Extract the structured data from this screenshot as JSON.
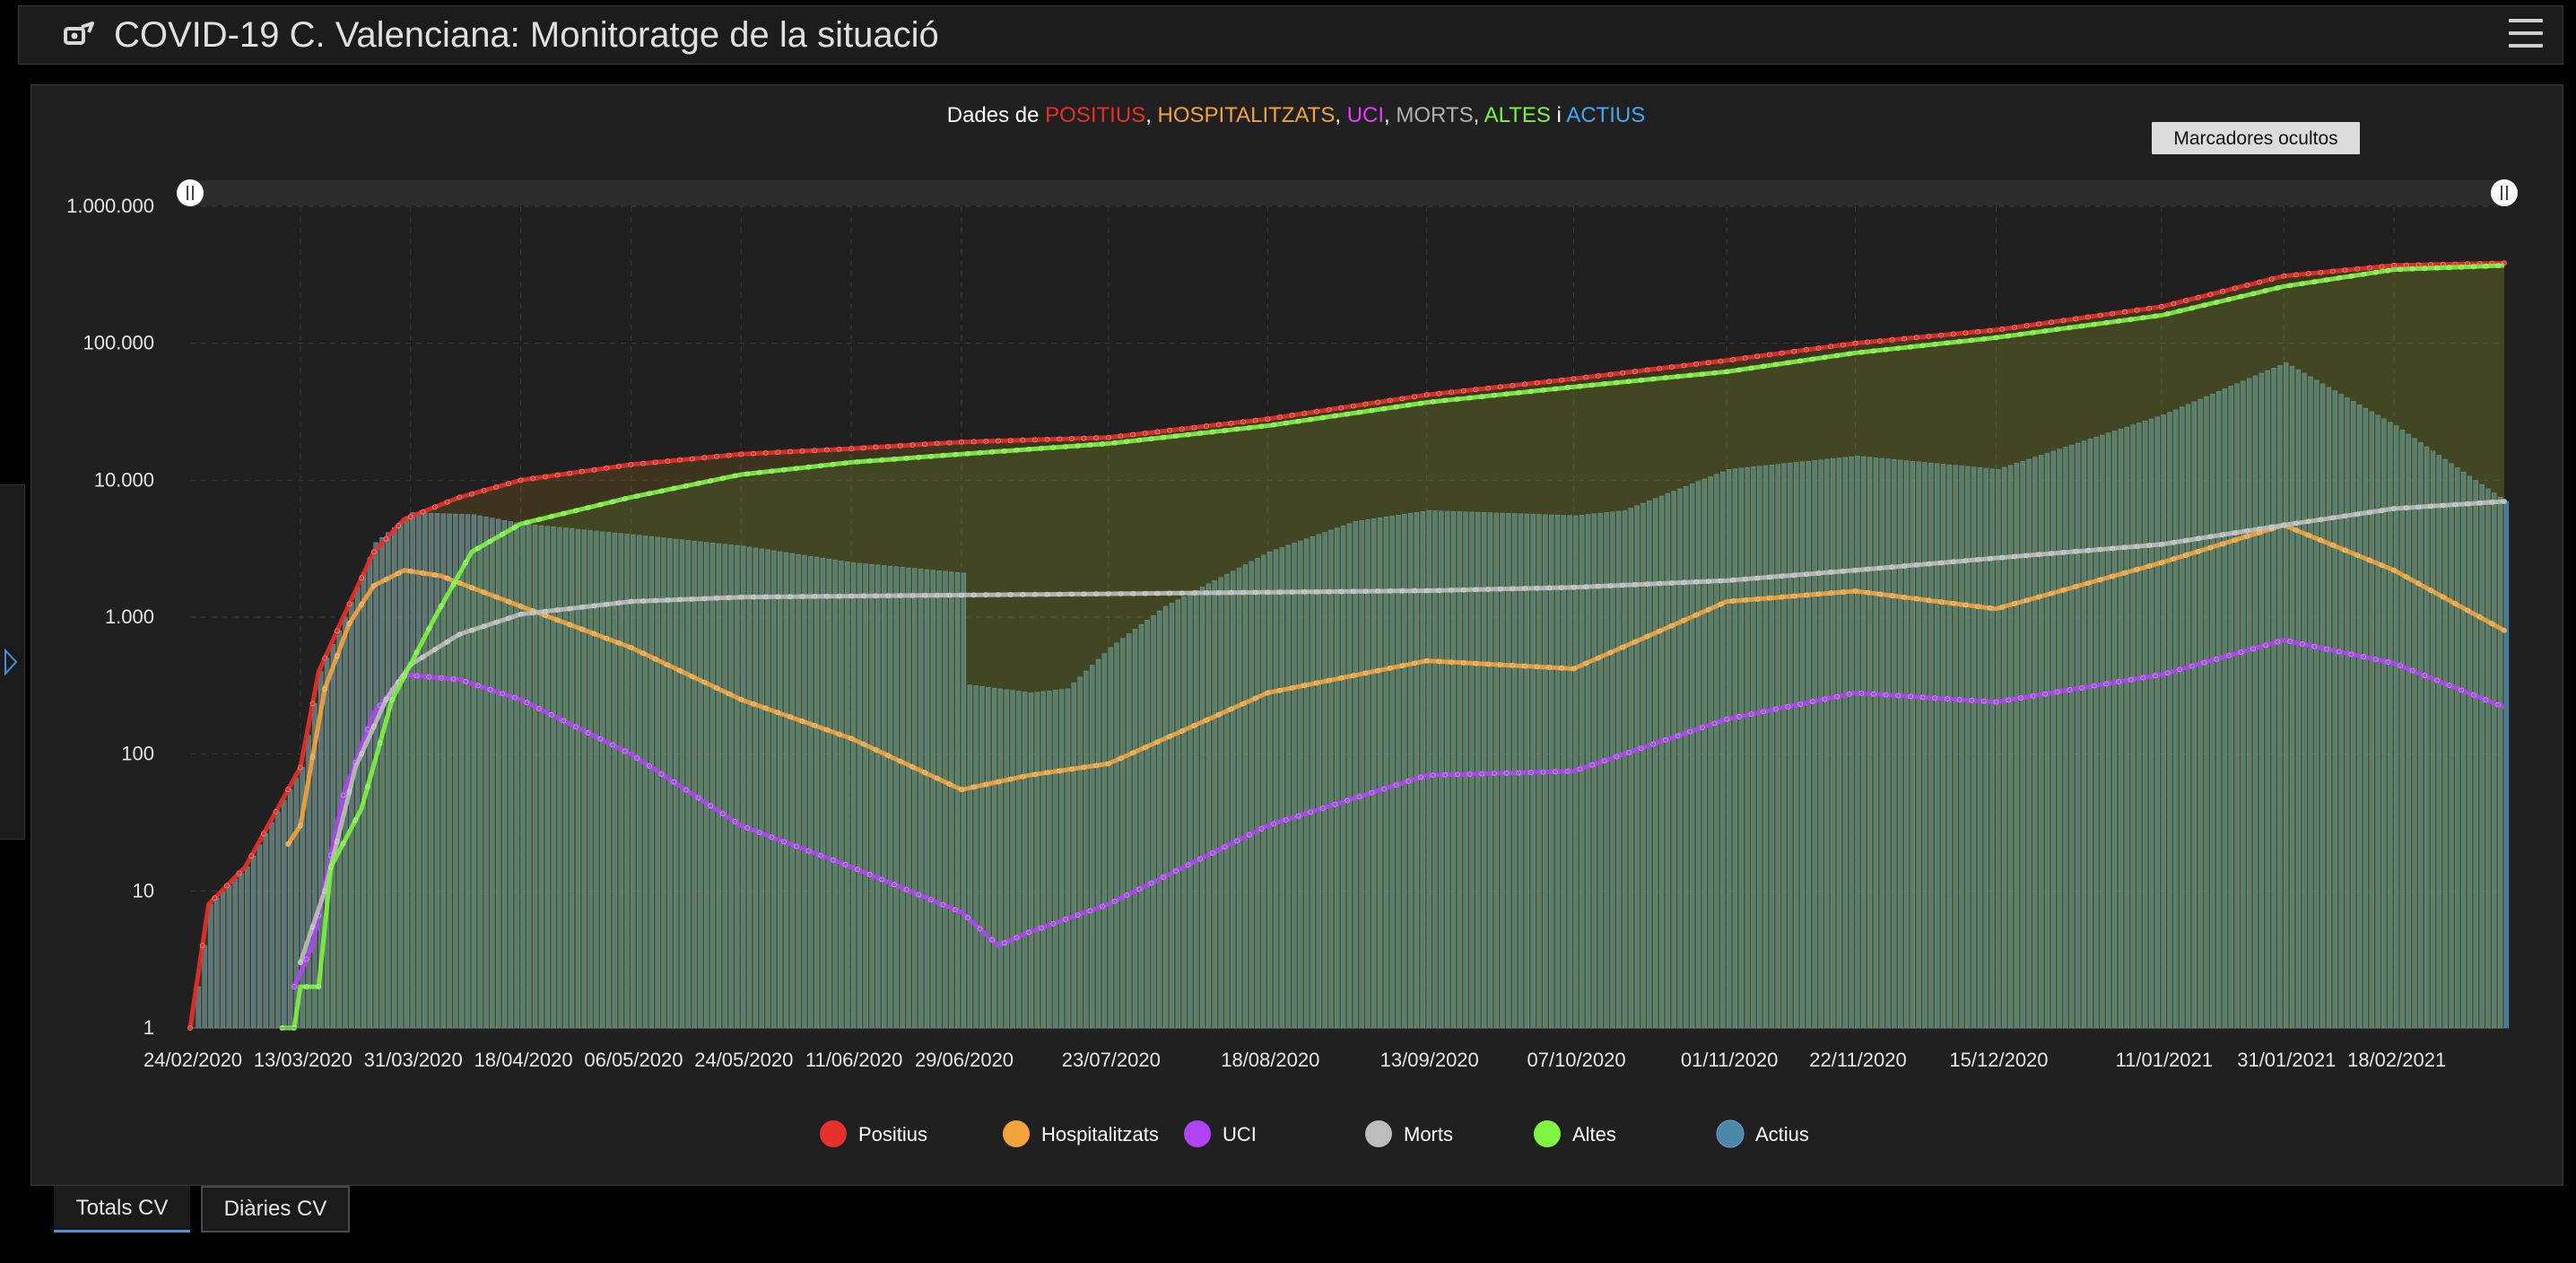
{
  "app": {
    "title": "COVID-19 C. Valenciana: Monitoratge de la situació",
    "icon": "dashboard-logo-icon",
    "menu_icon": "hamburger-menu-icon"
  },
  "chart": {
    "title_parts": [
      {
        "text": "Dades de ",
        "color": "#ffffff"
      },
      {
        "text": "POSITIUS",
        "color": "#e8302a"
      },
      {
        "text": ", ",
        "color": "#ffffff"
      },
      {
        "text": "HOSPITALITZATS",
        "color": "#f2a33c"
      },
      {
        "text": ", ",
        "color": "#ffffff"
      },
      {
        "text": "UCI",
        "color": "#e040fb"
      },
      {
        "text": ", ",
        "color": "#ffffff"
      },
      {
        "text": "MORTS",
        "color": "#b0b0b0"
      },
      {
        "text": ", ",
        "color": "#ffffff"
      },
      {
        "text": "ALTES",
        "color": "#7cf441"
      },
      {
        "text": " i ",
        "color": "#ffffff"
      },
      {
        "text": "ACTIUS",
        "color": "#3fa9f5"
      }
    ],
    "markers_button": "Marcadores ocultos"
  },
  "tabs": [
    {
      "label": "Totals CV",
      "active": true
    },
    {
      "label": "Diàries CV",
      "active": false
    }
  ],
  "chart_data": {
    "type": "line",
    "scale": "log",
    "ylim": [
      1,
      1000000
    ],
    "y_ticks": [
      1,
      10,
      100,
      1000,
      10000,
      100000,
      1000000
    ],
    "y_tick_labels": [
      "1",
      "10",
      "100",
      "1.000",
      "10.000",
      "100.000",
      "1.000.000"
    ],
    "x_start": "2020-02-24",
    "x_end": "2021-03-08",
    "x_tick_labels": [
      "24/02/2020",
      "13/03/2020",
      "31/03/2020",
      "18/04/2020",
      "06/05/2020",
      "24/05/2020",
      "11/06/2020",
      "29/06/2020",
      "23/07/2020",
      "18/08/2020",
      "13/09/2020",
      "07/10/2020",
      "01/11/2020",
      "22/11/2020",
      "15/12/2020",
      "11/01/2021",
      "31/01/2021",
      "18/02/2021"
    ],
    "grid": true,
    "legend_position": "bottom",
    "series": [
      {
        "name": "Positius",
        "color": "#e8302a",
        "style": "line-area",
        "points": [
          [
            "2020-02-24",
            1
          ],
          [
            "2020-02-27",
            8
          ],
          [
            "2020-03-04",
            15
          ],
          [
            "2020-03-13",
            80
          ],
          [
            "2020-03-16",
            400
          ],
          [
            "2020-03-20",
            1000
          ],
          [
            "2020-03-25",
            3000
          ],
          [
            "2020-03-30",
            5200
          ],
          [
            "2020-04-08",
            7500
          ],
          [
            "2020-04-18",
            10000
          ],
          [
            "2020-05-06",
            13000
          ],
          [
            "2020-05-24",
            15500
          ],
          [
            "2020-06-11",
            17000
          ],
          [
            "2020-06-29",
            19000
          ],
          [
            "2020-07-23",
            20500
          ],
          [
            "2020-08-18",
            28000
          ],
          [
            "2020-09-13",
            42000
          ],
          [
            "2020-10-07",
            55000
          ],
          [
            "2020-11-01",
            75000
          ],
          [
            "2020-11-22",
            100000
          ],
          [
            "2020-12-15",
            125000
          ],
          [
            "2021-01-11",
            185000
          ],
          [
            "2021-01-31",
            310000
          ],
          [
            "2021-02-18",
            370000
          ],
          [
            "2021-03-08",
            385000
          ]
        ]
      },
      {
        "name": "Hospitalitzats",
        "color": "#f2a33c",
        "style": "line",
        "points": [
          [
            "2020-03-11",
            22
          ],
          [
            "2020-03-13",
            30
          ],
          [
            "2020-03-17",
            300
          ],
          [
            "2020-03-21",
            900
          ],
          [
            "2020-03-25",
            1700
          ],
          [
            "2020-03-30",
            2200
          ],
          [
            "2020-04-05",
            2000
          ],
          [
            "2020-04-18",
            1200
          ],
          [
            "2020-05-06",
            600
          ],
          [
            "2020-05-24",
            250
          ],
          [
            "2020-06-11",
            130
          ],
          [
            "2020-06-29",
            55
          ],
          [
            "2020-07-10",
            70
          ],
          [
            "2020-07-23",
            85
          ],
          [
            "2020-08-18",
            280
          ],
          [
            "2020-09-13",
            480
          ],
          [
            "2020-10-07",
            420
          ],
          [
            "2020-11-01",
            1300
          ],
          [
            "2020-11-22",
            1550
          ],
          [
            "2020-12-15",
            1150
          ],
          [
            "2021-01-11",
            2500
          ],
          [
            "2021-01-31",
            4700
          ],
          [
            "2021-02-18",
            2200
          ],
          [
            "2021-03-08",
            800
          ]
        ]
      },
      {
        "name": "UCI",
        "color": "#b044f5",
        "style": "line",
        "points": [
          [
            "2020-03-12",
            2
          ],
          [
            "2020-03-15",
            4
          ],
          [
            "2020-03-20",
            50
          ],
          [
            "2020-03-25",
            200
          ],
          [
            "2020-03-30",
            380
          ],
          [
            "2020-04-08",
            350
          ],
          [
            "2020-04-18",
            250
          ],
          [
            "2020-05-06",
            100
          ],
          [
            "2020-05-24",
            30
          ],
          [
            "2020-06-11",
            15
          ],
          [
            "2020-06-29",
            7
          ],
          [
            "2020-07-05",
            4
          ],
          [
            "2020-07-10",
            5
          ],
          [
            "2020-07-23",
            8
          ],
          [
            "2020-08-18",
            30
          ],
          [
            "2020-09-13",
            70
          ],
          [
            "2020-10-07",
            75
          ],
          [
            "2020-11-01",
            180
          ],
          [
            "2020-11-22",
            280
          ],
          [
            "2020-12-15",
            240
          ],
          [
            "2021-01-11",
            380
          ],
          [
            "2021-01-31",
            680
          ],
          [
            "2021-02-18",
            460
          ],
          [
            "2021-03-08",
            220
          ]
        ]
      },
      {
        "name": "Morts",
        "color": "#bdbdbd",
        "style": "line",
        "points": [
          [
            "2020-03-13",
            3
          ],
          [
            "2020-03-17",
            10
          ],
          [
            "2020-03-22",
            80
          ],
          [
            "2020-03-27",
            250
          ],
          [
            "2020-03-31",
            450
          ],
          [
            "2020-04-08",
            750
          ],
          [
            "2020-04-18",
            1050
          ],
          [
            "2020-05-06",
            1300
          ],
          [
            "2020-05-24",
            1400
          ],
          [
            "2020-06-29",
            1450
          ],
          [
            "2020-07-23",
            1480
          ],
          [
            "2020-08-18",
            1520
          ],
          [
            "2020-09-13",
            1560
          ],
          [
            "2020-10-07",
            1650
          ],
          [
            "2020-11-01",
            1850
          ],
          [
            "2020-11-22",
            2200
          ],
          [
            "2020-12-15",
            2700
          ],
          [
            "2021-01-11",
            3400
          ],
          [
            "2021-01-31",
            4700
          ],
          [
            "2021-02-18",
            6200
          ],
          [
            "2021-03-08",
            7000
          ]
        ]
      },
      {
        "name": "Altes",
        "color": "#7cf441",
        "style": "line-area",
        "points": [
          [
            "2020-03-10",
            1
          ],
          [
            "2020-03-12",
            1
          ],
          [
            "2020-03-13",
            2
          ],
          [
            "2020-03-16",
            2
          ],
          [
            "2020-03-18",
            15
          ],
          [
            "2020-03-23",
            40
          ],
          [
            "2020-03-28",
            250
          ],
          [
            "2020-04-04",
            1000
          ],
          [
            "2020-04-10",
            3000
          ],
          [
            "2020-04-18",
            4800
          ],
          [
            "2020-05-06",
            7500
          ],
          [
            "2020-05-24",
            11000
          ],
          [
            "2020-06-11",
            13500
          ],
          [
            "2020-06-29",
            15500
          ],
          [
            "2020-07-23",
            18500
          ],
          [
            "2020-08-18",
            25000
          ],
          [
            "2020-09-13",
            37000
          ],
          [
            "2020-10-07",
            48000
          ],
          [
            "2020-11-01",
            62000
          ],
          [
            "2020-11-22",
            85000
          ],
          [
            "2020-12-15",
            110000
          ],
          [
            "2021-01-11",
            160000
          ],
          [
            "2021-01-31",
            260000
          ],
          [
            "2021-02-18",
            345000
          ],
          [
            "2021-03-08",
            370000
          ]
        ]
      },
      {
        "name": "Actius",
        "color": "#4b87a8",
        "style": "bar",
        "points": [
          [
            "2020-02-24",
            1
          ],
          [
            "2020-02-27",
            8
          ],
          [
            "2020-03-04",
            15
          ],
          [
            "2020-03-13",
            80
          ],
          [
            "2020-03-16",
            400
          ],
          [
            "2020-03-20",
            1000
          ],
          [
            "2020-03-25",
            3500
          ],
          [
            "2020-03-31",
            5800
          ],
          [
            "2020-04-10",
            5600
          ],
          [
            "2020-04-18",
            4800
          ],
          [
            "2020-05-06",
            4000
          ],
          [
            "2020-05-24",
            3300
          ],
          [
            "2020-06-11",
            2500
          ],
          [
            "2020-06-29",
            2100
          ],
          [
            "2020-06-30",
            320
          ],
          [
            "2020-07-10",
            280
          ],
          [
            "2020-07-16",
            300
          ],
          [
            "2020-07-23",
            600
          ],
          [
            "2020-08-01",
            1200
          ],
          [
            "2020-08-18",
            3000
          ],
          [
            "2020-09-01",
            5000
          ],
          [
            "2020-09-13",
            6000
          ],
          [
            "2020-10-07",
            5500
          ],
          [
            "2020-10-15",
            6000
          ],
          [
            "2020-11-01",
            12000
          ],
          [
            "2020-11-22",
            15000
          ],
          [
            "2020-12-15",
            12000
          ],
          [
            "2021-01-11",
            30000
          ],
          [
            "2021-01-31",
            72000
          ],
          [
            "2021-02-18",
            25000
          ],
          [
            "2021-03-08",
            7000
          ]
        ]
      }
    ]
  }
}
